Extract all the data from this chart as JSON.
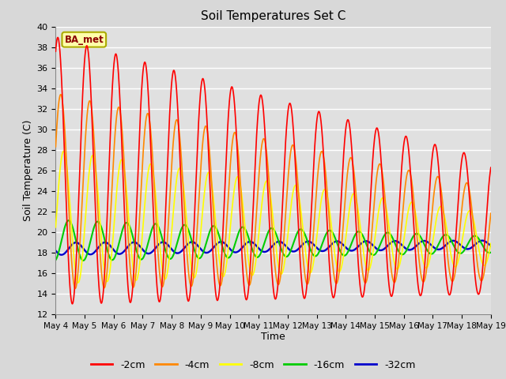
{
  "title": "Soil Temperatures Set C",
  "xlabel": "Time",
  "ylabel": "Soil Temperature (C)",
  "ylim": [
    12,
    40
  ],
  "yticks": [
    12,
    14,
    16,
    18,
    20,
    22,
    24,
    26,
    28,
    30,
    32,
    34,
    36,
    38,
    40
  ],
  "x_labels": [
    "May 4",
    "May 5",
    "May 6",
    "May 7",
    "May 8",
    "May 9",
    "May 10",
    "May 11",
    "May 12",
    "May 13",
    "May 14",
    "May 15",
    "May 16",
    "May 17",
    "May 18",
    "May 19"
  ],
  "annotation_text": "BA_met",
  "colors": {
    "-2cm": "#ff0000",
    "-4cm": "#ff8800",
    "-8cm": "#ffff00",
    "-16cm": "#00cc00",
    "-32cm": "#0000cc"
  },
  "fig_bg_color": "#d8d8d8",
  "plot_bg_color": "#e0e0e0",
  "grid_color": "#ffffff"
}
